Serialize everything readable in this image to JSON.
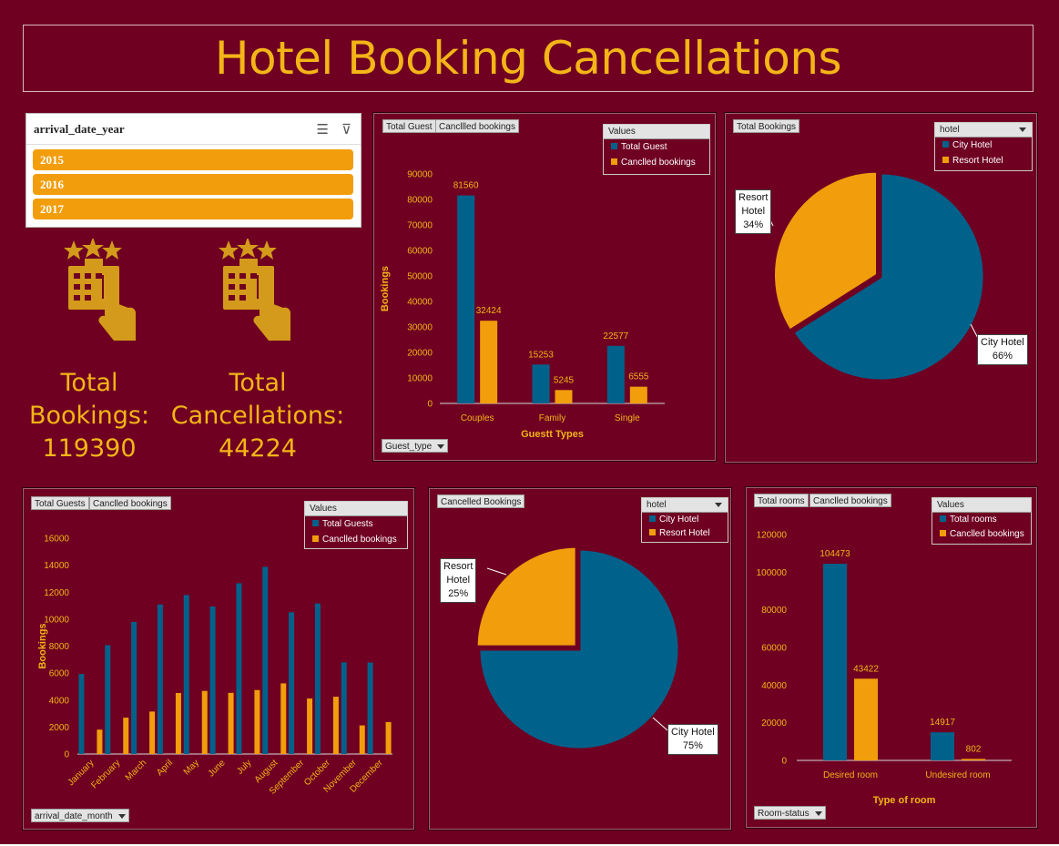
{
  "title": "Hotel Booking Cancellations",
  "colors": {
    "background": "#6f0022",
    "title": "#f3b517",
    "blue": "#00628b",
    "orange": "#f29d0c",
    "gold": "#f3b517"
  },
  "slicer": {
    "header": "arrival_date_year",
    "items": [
      "2015",
      "2016",
      "2017"
    ],
    "icons": [
      "multi-select-icon",
      "clear-filter-icon"
    ]
  },
  "kpis": [
    {
      "label_line1": "Total",
      "label_line2": "Bookings:",
      "value": "119390",
      "icon": "hotel-booking-icon"
    },
    {
      "label_line1": "Total",
      "label_line2": "Cancellations:",
      "value": "44224",
      "icon": "hotel-booking-icon"
    }
  ],
  "guest_chart": {
    "buttons": [
      "Total Guest",
      "Cancllled bookings"
    ],
    "legend_title": "Values",
    "legend": [
      "Total Guest",
      "Canclled bookings"
    ],
    "filter": "Guest_type"
  },
  "pie1": {
    "button": "Total Bookings",
    "legend_title": "hotel",
    "legend": [
      "City Hotel",
      "Resort Hotel"
    ],
    "callout_resort": [
      "Resort",
      "Hotel",
      "34%"
    ],
    "callout_city": [
      "City Hotel",
      "66%"
    ]
  },
  "month_chart": {
    "buttons": [
      "Total Guests",
      "Canclled bookings"
    ],
    "legend_title": "Values",
    "legend": [
      "Total Guests",
      "Canclled bookings"
    ],
    "filter": "arrival_date_month"
  },
  "pie2": {
    "button": "Cancelled Bookings",
    "legend_title": "hotel",
    "legend": [
      "City Hotel",
      "Resort Hotel"
    ],
    "callout_resort": [
      "Resort",
      "Hotel",
      "25%"
    ],
    "callout_city": [
      "City Hotel",
      "75%"
    ]
  },
  "room_chart": {
    "buttons": [
      "Total rooms",
      "Canclled bookings"
    ],
    "legend_title": "Values",
    "legend": [
      "Total rooms",
      "Canclled bookings"
    ],
    "filter": "Room-status"
  },
  "chart_data": [
    {
      "type": "bar",
      "categories": [
        "Couples",
        "Family",
        "Single"
      ],
      "series": [
        {
          "name": "Total Guest",
          "values": [
            81560,
            15253,
            22577
          ]
        },
        {
          "name": "Canclled bookings",
          "values": [
            32424,
            5245,
            6555
          ]
        }
      ],
      "xlabel": "Guestt Types",
      "ylabel": "Bookings",
      "ylim": [
        0,
        90000
      ],
      "yticks": [
        "0",
        "10000",
        "20000",
        "30000",
        "40000",
        "50000",
        "60000",
        "70000",
        "80000",
        "90000"
      ],
      "value_labels": [
        "81560",
        "15253",
        "22577",
        "32424",
        "5245",
        "6555"
      ]
    },
    {
      "type": "pie",
      "labels": [
        "City Hotel",
        "Resort Hotel"
      ],
      "values": [
        66,
        34
      ]
    },
    {
      "type": "bar",
      "categories": [
        "January",
        "February",
        "March",
        "April",
        "May",
        "June",
        "July",
        "August",
        "September",
        "October",
        "November",
        "December"
      ],
      "series": [
        {
          "name": "Total Guests",
          "values": [
            5930,
            8068,
            9794,
            11089,
            11791,
            10939,
            12661,
            13877,
            10508,
            11160,
            6794,
            6780
          ]
        },
        {
          "name": "Canclled bookings",
          "values": [
            1807,
            2696,
            3149,
            4524,
            4677,
            4535,
            4742,
            5239,
            4116,
            4246,
            2122,
            2371
          ]
        }
      ],
      "ylabel": "Bookings",
      "ylim": [
        0,
        16000
      ],
      "yticks": [
        "0",
        "2000",
        "4000",
        "6000",
        "8000",
        "10000",
        "12000",
        "14000",
        "16000"
      ]
    },
    {
      "type": "pie",
      "labels": [
        "City Hotel",
        "Resort Hotel"
      ],
      "values": [
        75,
        25
      ]
    },
    {
      "type": "bar",
      "categories": [
        "Desired room",
        "Undesired room"
      ],
      "series": [
        {
          "name": "Total rooms",
          "values": [
            104473,
            14917
          ]
        },
        {
          "name": "Canclled bookings",
          "values": [
            43422,
            802
          ]
        }
      ],
      "xlabel": "Type of room",
      "ylim": [
        0,
        120000
      ],
      "yticks": [
        "0",
        "20000",
        "40000",
        "60000",
        "80000",
        "100000",
        "120000"
      ],
      "value_labels": [
        "104473",
        "14917",
        "43422",
        "802"
      ]
    }
  ]
}
